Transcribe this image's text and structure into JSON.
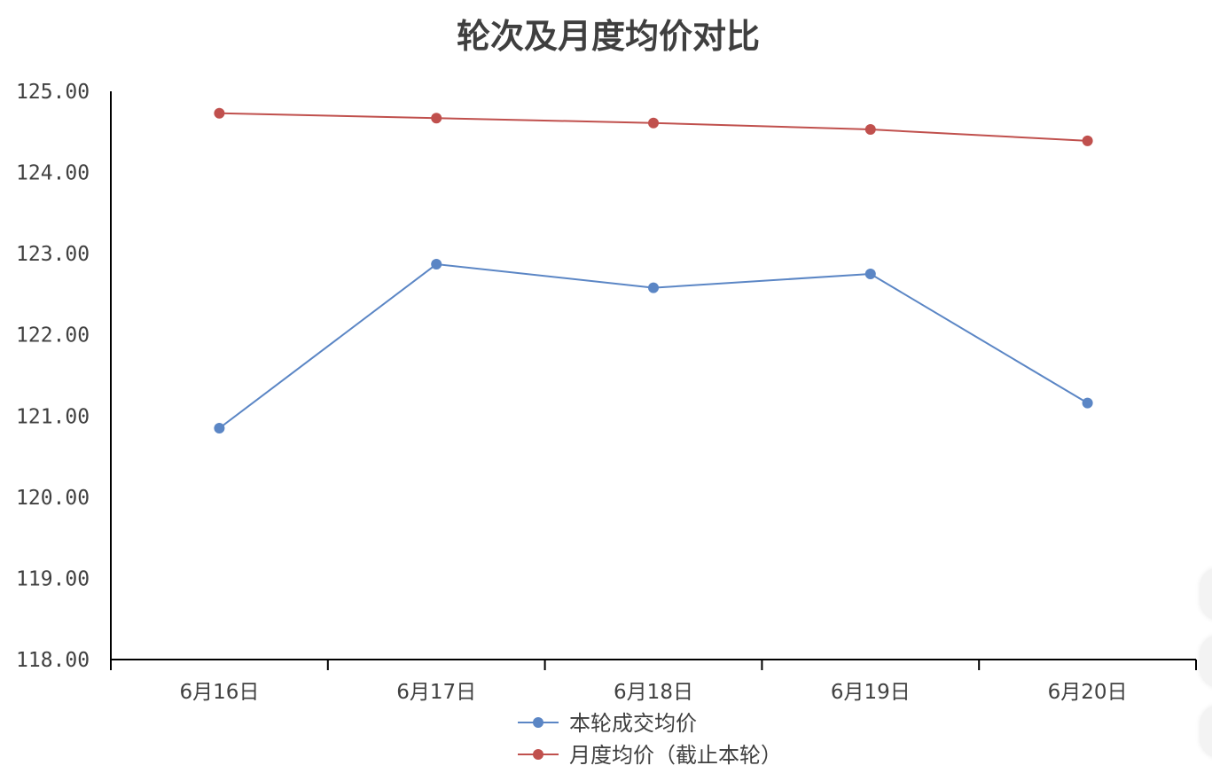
{
  "chart_data": {
    "type": "line",
    "title": "轮次及月度均价对比",
    "xlabel": "",
    "ylabel": "",
    "categories": [
      "6月16日",
      "6月17日",
      "6月18日",
      "6月19日",
      "6月20日"
    ],
    "ylim": [
      118,
      125
    ],
    "yticks": [
      118,
      119,
      120,
      121,
      122,
      123,
      124,
      125
    ],
    "ytick_labels": [
      "118.00",
      "119.00",
      "120.00",
      "121.00",
      "122.00",
      "123.00",
      "124.00",
      "125.00"
    ],
    "grid": false,
    "legend_position": "bottom",
    "series": [
      {
        "name": "本轮成交均价",
        "color": "#5b86c5",
        "values": [
          120.85,
          122.87,
          122.58,
          122.75,
          121.16
        ]
      },
      {
        "name": "月度均价（截止本轮）",
        "color": "#c0504d",
        "values": [
          124.73,
          124.67,
          124.61,
          124.53,
          124.39
        ]
      }
    ]
  }
}
